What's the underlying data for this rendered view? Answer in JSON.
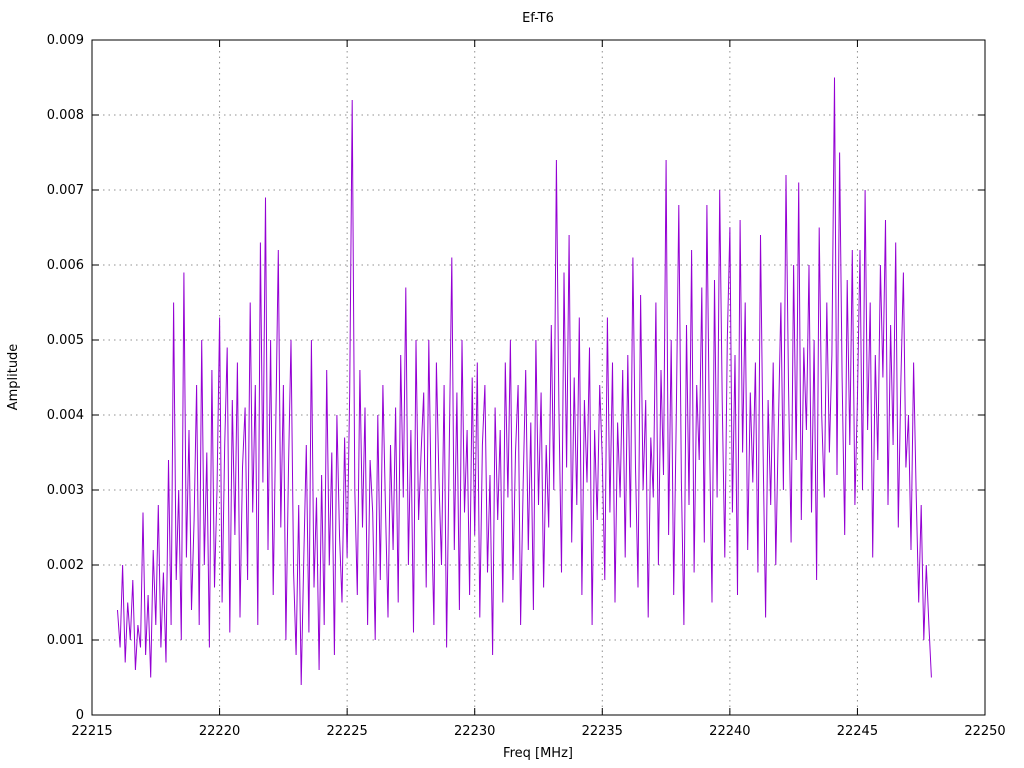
{
  "chart_data": {
    "type": "line",
    "title": "Ef-T6",
    "xlabel": "Freq [MHz]",
    "ylabel": "Amplitude",
    "xlim": [
      22215,
      22250
    ],
    "ylim": [
      0,
      0.009
    ],
    "grid": true,
    "legend": "none",
    "line_color": "#9400d3",
    "xticks": [
      22215,
      22220,
      22225,
      22230,
      22235,
      22240,
      22245,
      22250
    ],
    "xtick_labels": [
      "22215",
      "22220",
      "22225",
      "22230",
      "22235",
      "22240",
      "22245",
      "22250"
    ],
    "yticks": [
      0,
      0.001,
      0.002,
      0.003,
      0.004,
      0.005,
      0.006,
      0.007,
      0.008,
      0.009
    ],
    "ytick_labels": [
      "0",
      "0.001",
      "0.002",
      "0.003",
      "0.004",
      "0.005",
      "0.006",
      "0.007",
      "0.008",
      "0.009"
    ],
    "x_start": 22216.0,
    "x_step": 0.1,
    "values": [
      0.0014,
      0.0009,
      0.002,
      0.0007,
      0.0015,
      0.001,
      0.0018,
      0.0006,
      0.0012,
      0.0009,
      0.0027,
      0.0008,
      0.0016,
      0.0005,
      0.0022,
      0.0012,
      0.0028,
      0.0009,
      0.0019,
      0.0007,
      0.0034,
      0.0012,
      0.0055,
      0.0018,
      0.003,
      0.001,
      0.0059,
      0.0021,
      0.0038,
      0.0014,
      0.0026,
      0.0044,
      0.0012,
      0.005,
      0.002,
      0.0035,
      0.0009,
      0.0046,
      0.0017,
      0.003,
      0.0053,
      0.0015,
      0.0036,
      0.0049,
      0.0011,
      0.0042,
      0.0024,
      0.0047,
      0.0013,
      0.0033,
      0.0041,
      0.0018,
      0.0055,
      0.0027,
      0.0044,
      0.0012,
      0.0063,
      0.0031,
      0.0069,
      0.0022,
      0.005,
      0.0016,
      0.0038,
      0.0062,
      0.0025,
      0.0044,
      0.001,
      0.0033,
      0.005,
      0.0019,
      0.0008,
      0.0028,
      0.0004,
      0.0021,
      0.0036,
      0.0011,
      0.005,
      0.0017,
      0.0029,
      0.0006,
      0.0032,
      0.0012,
      0.0046,
      0.002,
      0.0035,
      0.0008,
      0.004,
      0.0024,
      0.0015,
      0.0037,
      0.0021,
      0.0043,
      0.0082,
      0.003,
      0.0016,
      0.0046,
      0.0025,
      0.0041,
      0.0012,
      0.0034,
      0.0027,
      0.001,
      0.004,
      0.0018,
      0.0044,
      0.0028,
      0.0013,
      0.0036,
      0.0022,
      0.0041,
      0.0015,
      0.0048,
      0.0029,
      0.0057,
      0.002,
      0.0038,
      0.0011,
      0.005,
      0.0026,
      0.0035,
      0.0043,
      0.0017,
      0.005,
      0.0028,
      0.0012,
      0.0047,
      0.0031,
      0.002,
      0.0044,
      0.0009,
      0.0035,
      0.0061,
      0.0022,
      0.0043,
      0.0014,
      0.005,
      0.0027,
      0.0038,
      0.0016,
      0.0045,
      0.0024,
      0.0047,
      0.0013,
      0.0036,
      0.0044,
      0.0019,
      0.0032,
      0.0008,
      0.0041,
      0.0026,
      0.0038,
      0.0015,
      0.0047,
      0.0029,
      0.005,
      0.0018,
      0.0035,
      0.0044,
      0.0012,
      0.0031,
      0.0046,
      0.0022,
      0.0039,
      0.0014,
      0.005,
      0.0028,
      0.0043,
      0.0017,
      0.0036,
      0.0025,
      0.0052,
      0.003,
      0.0074,
      0.0041,
      0.0019,
      0.0059,
      0.0033,
      0.0064,
      0.0023,
      0.0045,
      0.0028,
      0.0053,
      0.0016,
      0.0042,
      0.0031,
      0.0049,
      0.0012,
      0.0038,
      0.0026,
      0.0044,
      0.0034,
      0.0018,
      0.0053,
      0.0027,
      0.0047,
      0.0015,
      0.0039,
      0.0029,
      0.0046,
      0.0021,
      0.0048,
      0.0025,
      0.0061,
      0.0033,
      0.0017,
      0.0056,
      0.003,
      0.0042,
      0.0013,
      0.0037,
      0.0029,
      0.0055,
      0.002,
      0.0046,
      0.0032,
      0.0074,
      0.0024,
      0.005,
      0.0016,
      0.004,
      0.0068,
      0.0031,
      0.0012,
      0.0052,
      0.0028,
      0.0062,
      0.0019,
      0.0044,
      0.0034,
      0.0057,
      0.0023,
      0.0068,
      0.0038,
      0.0015,
      0.0058,
      0.0029,
      0.007,
      0.0042,
      0.0021,
      0.005,
      0.0065,
      0.0027,
      0.0048,
      0.0016,
      0.0066,
      0.0035,
      0.0055,
      0.0022,
      0.0043,
      0.0031,
      0.0047,
      0.0019,
      0.0064,
      0.0036,
      0.0013,
      0.0042,
      0.0028,
      0.0047,
      0.002,
      0.0038,
      0.0055,
      0.003,
      0.0072,
      0.0044,
      0.0023,
      0.006,
      0.0034,
      0.0071,
      0.0026,
      0.0049,
      0.0038,
      0.006,
      0.0027,
      0.005,
      0.0018,
      0.0065,
      0.004,
      0.0029,
      0.0055,
      0.0035,
      0.0048,
      0.0085,
      0.0032,
      0.0075,
      0.0045,
      0.0024,
      0.0058,
      0.0036,
      0.0062,
      0.0028,
      0.0042,
      0.0062,
      0.003,
      0.007,
      0.0038,
      0.0055,
      0.0021,
      0.0048,
      0.0034,
      0.006,
      0.0045,
      0.0066,
      0.0028,
      0.0052,
      0.0036,
      0.0063,
      0.0025,
      0.0044,
      0.0059,
      0.0033,
      0.004,
      0.0022,
      0.0047,
      0.003,
      0.0015,
      0.0028,
      0.001,
      0.002,
      0.0012,
      0.0005
    ]
  }
}
